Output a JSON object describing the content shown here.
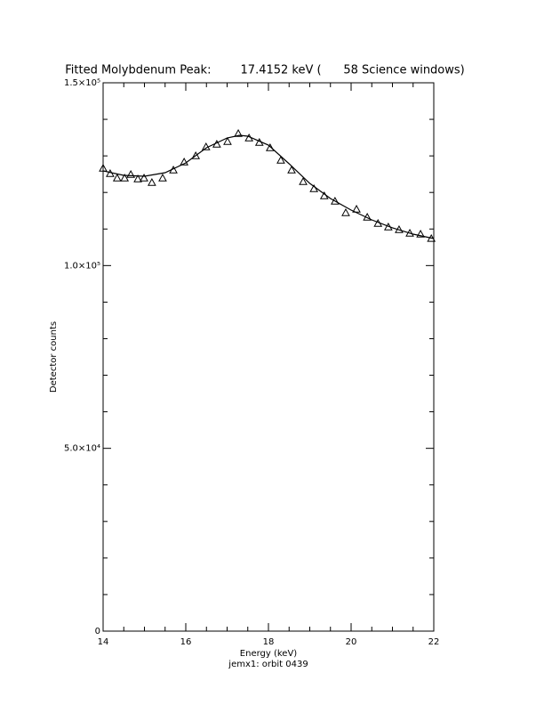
{
  "chart_data": {
    "type": "scatter",
    "title": "Fitted Molybdenum Peak:        17.4152 keV (      58 Science windows)",
    "xlabel": "Energy (keV)",
    "subtitle": "jemx1: orbit 0439",
    "ylabel": "Detector counts",
    "xlim": [
      14,
      22
    ],
    "ylim": [
      0,
      150000
    ],
    "xticks": [
      14,
      16,
      18,
      20,
      22
    ],
    "xminorticks": [
      14.5,
      15,
      15.5,
      16.5,
      17,
      17.5,
      18.5,
      19,
      19.5,
      20.5,
      21,
      21.5
    ],
    "yticks": [
      0,
      {
        "value": 50000,
        "label": "5.0×10⁴"
      },
      {
        "value": 100000,
        "label": "1.0×10⁵"
      },
      {
        "value": 150000,
        "label": "1.5×10⁵"
      }
    ],
    "yminorticks": [
      10000,
      20000,
      30000,
      40000,
      60000,
      70000,
      80000,
      90000,
      110000,
      120000,
      130000,
      140000
    ],
    "color": "#000000",
    "points": {
      "x": [
        14.0,
        14.17,
        14.34,
        14.52,
        14.67,
        14.84,
        14.99,
        15.18,
        15.44,
        15.7,
        15.96,
        16.24,
        16.49,
        16.75,
        17.01,
        17.27,
        17.53,
        17.78,
        18.04,
        18.3,
        18.56,
        18.84,
        19.1,
        19.35,
        19.61,
        19.87,
        20.13,
        20.39,
        20.65,
        20.9,
        21.16,
        21.42,
        21.68,
        21.94
      ],
      "values": [
        126620,
        125160,
        123940,
        123940,
        124920,
        123700,
        123940,
        122720,
        123940,
        126130,
        128320,
        130030,
        132460,
        133190,
        133930,
        136120,
        134900,
        133680,
        132220,
        128810,
        126130,
        122970,
        121020,
        119070,
        117610,
        114450,
        115420,
        113230,
        111520,
        110550,
        109820,
        108840,
        108600,
        107390
      ]
    },
    "fit": {
      "x": [
        14,
        14.5,
        15,
        15.5,
        16,
        16.5,
        17,
        17.3,
        17.5,
        18,
        18.5,
        19,
        19.5,
        20,
        20.5,
        21,
        21.5,
        22
      ],
      "values": [
        125900,
        124670,
        124430,
        125400,
        128080,
        132220,
        134900,
        135630,
        135390,
        132950,
        127840,
        122480,
        118340,
        115180,
        112500,
        110310,
        108600,
        107390
      ]
    }
  }
}
